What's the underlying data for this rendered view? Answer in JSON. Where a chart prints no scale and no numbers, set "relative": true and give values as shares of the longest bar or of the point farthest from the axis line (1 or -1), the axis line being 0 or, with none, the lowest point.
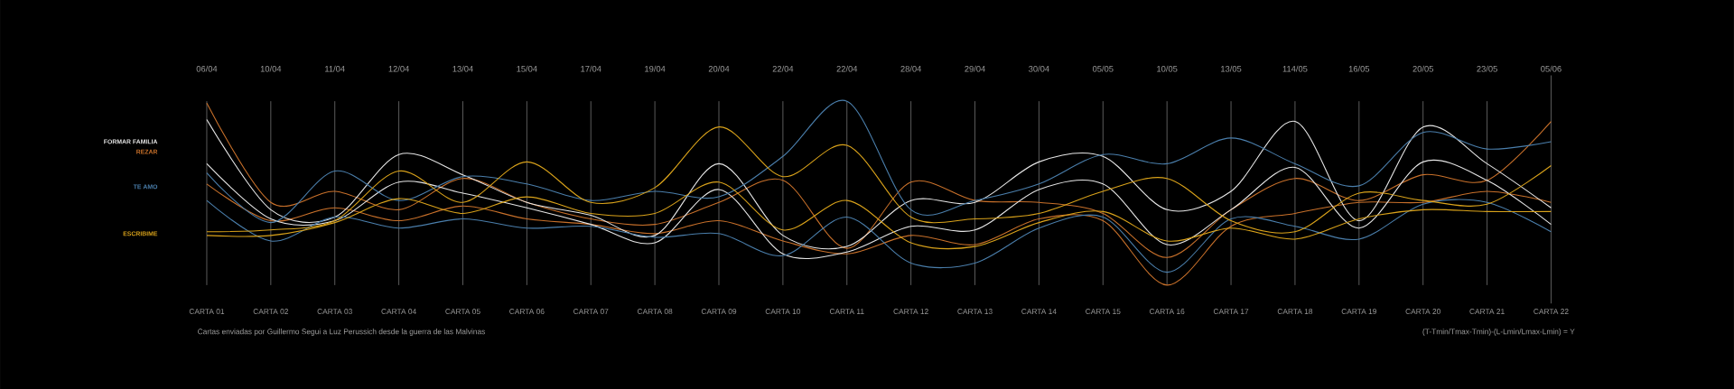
{
  "chart_data": {
    "type": "line",
    "relative": true,
    "grid": "x",
    "legend": "left",
    "categories": [
      "CARTA 01",
      "CARTA 02",
      "CARTA 03",
      "CARTA 04",
      "CARTA 05",
      "CARTA 06",
      "CARTA 07",
      "CARTA 08",
      "CARTA 09",
      "CARTA 10",
      "CARTA 11",
      "CARTA 12",
      "CARTA 13",
      "CARTA 14",
      "CARTA 15",
      "CARTA 16",
      "CARTA 17",
      "CARTA 18",
      "CARTA 19",
      "CARTA 20",
      "CARTA 21",
      "CARTA 22"
    ],
    "series": [
      {
        "name": "REZAR",
        "color": "#c8702a",
        "values": [
          0.99,
          0.45,
          0.51,
          0.41,
          0.58,
          0.45,
          0.36,
          0.33,
          0.45,
          0.57,
          0.2,
          0.56,
          0.46,
          0.45,
          0.39,
          0.15,
          0.41,
          0.58,
          0.46,
          0.6,
          0.57,
          0.89
        ]
      },
      {
        "color": "#c8702a",
        "values": [
          0.55,
          0.35,
          0.42,
          0.35,
          0.43,
          0.36,
          0.33,
          0.28,
          0.35,
          0.24,
          0.17,
          0.27,
          0.22,
          0.36,
          0.35,
          0.0,
          0.32,
          0.39,
          0.45,
          0.45,
          0.51,
          0.45
        ]
      },
      {
        "name": "FORMAR FAMILIA",
        "color": "#e6e6e6",
        "values": [
          0.9,
          0.41,
          0.37,
          0.71,
          0.6,
          0.45,
          0.38,
          0.27,
          0.66,
          0.27,
          0.21,
          0.46,
          0.45,
          0.67,
          0.7,
          0.41,
          0.51,
          0.89,
          0.35,
          0.86,
          0.66,
          0.42
        ]
      },
      {
        "color": "#e6e6e6",
        "values": [
          0.66,
          0.36,
          0.35,
          0.56,
          0.5,
          0.42,
          0.33,
          0.23,
          0.52,
          0.17,
          0.18,
          0.32,
          0.3,
          0.52,
          0.55,
          0.22,
          0.41,
          0.64,
          0.31,
          0.67,
          0.57,
          0.33
        ]
      },
      {
        "name": "TE AMO",
        "color": "#4a7eab",
        "values": [
          0.61,
          0.34,
          0.62,
          0.46,
          0.59,
          0.55,
          0.46,
          0.51,
          0.48,
          0.7,
          1.0,
          0.41,
          0.46,
          0.55,
          0.71,
          0.66,
          0.8,
          0.66,
          0.54,
          0.83,
          0.74,
          0.78
        ]
      },
      {
        "color": "#4a7eab",
        "values": [
          0.46,
          0.24,
          0.37,
          0.31,
          0.36,
          0.31,
          0.32,
          0.26,
          0.28,
          0.16,
          0.37,
          0.12,
          0.12,
          0.31,
          0.37,
          0.07,
          0.36,
          0.32,
          0.25,
          0.44,
          0.45,
          0.29
        ]
      },
      {
        "name": "ESCRIBIME",
        "color": "#d9a21a",
        "values": [
          0.29,
          0.3,
          0.35,
          0.62,
          0.45,
          0.67,
          0.45,
          0.53,
          0.86,
          0.59,
          0.76,
          0.37,
          0.36,
          0.39,
          0.51,
          0.58,
          0.35,
          0.29,
          0.5,
          0.46,
          0.44,
          0.65
        ]
      },
      {
        "color": "#d9a21a",
        "values": [
          0.27,
          0.27,
          0.34,
          0.47,
          0.39,
          0.48,
          0.39,
          0.39,
          0.56,
          0.3,
          0.46,
          0.23,
          0.21,
          0.34,
          0.4,
          0.24,
          0.31,
          0.25,
          0.36,
          0.41,
          0.4,
          0.4
        ]
      }
    ],
    "annotations": [
      "06/04",
      "10/04",
      "11/04",
      "12/04",
      "13/04",
      "15/04",
      "17/04",
      "19/04",
      "20/04",
      "22/04",
      "22/04",
      "28/04",
      "29/04",
      "30/04",
      "05/05",
      "10/05",
      "13/05",
      "114/05",
      "16/05",
      "20/05",
      "23/05",
      "05/06",
      "Cartas enviadas por Guillermo Segui a Luz Perussich desde la guerra de las Malvinas",
      "(T-Tmin/Tmax-Tmin)-(L-Lmin/Lmax-Lmin) = Y"
    ]
  }
}
